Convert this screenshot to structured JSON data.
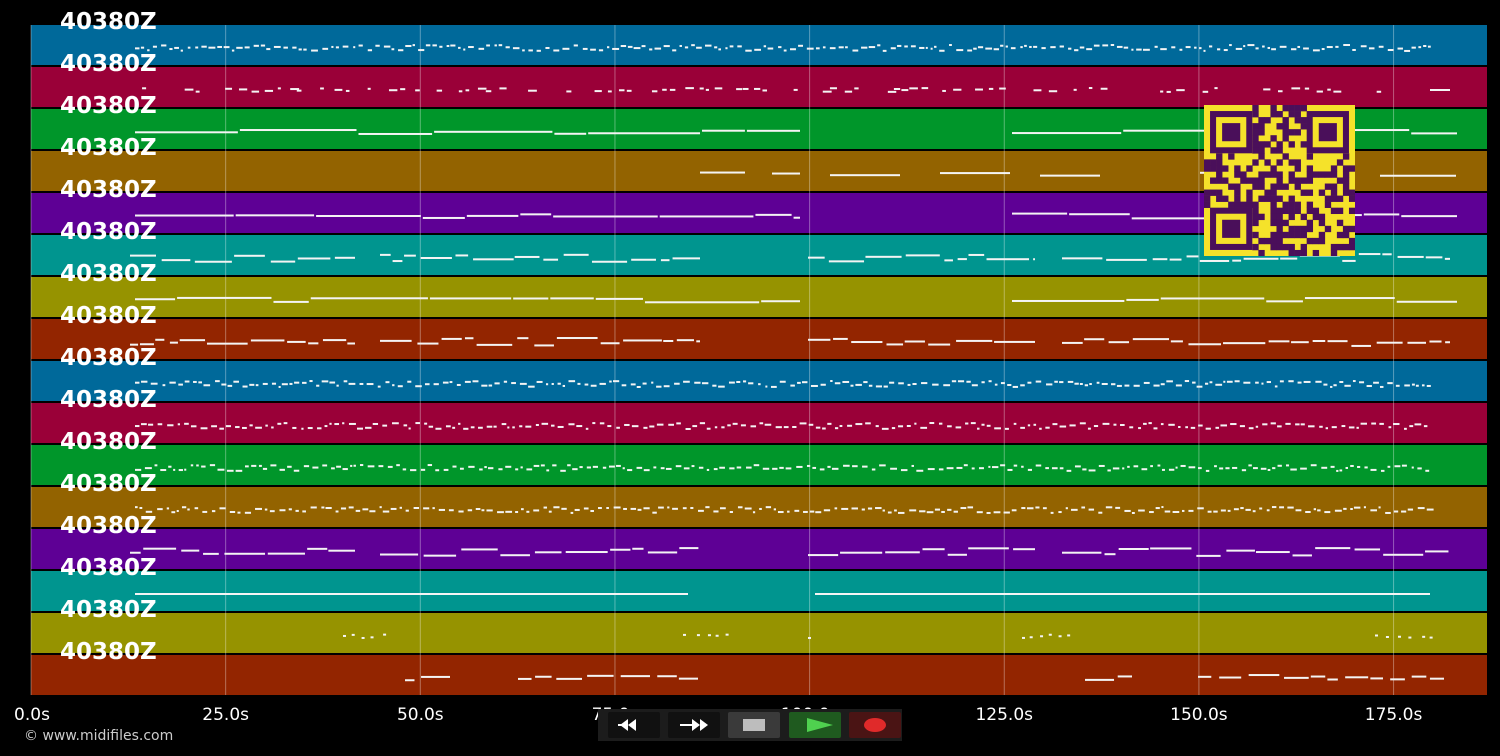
{
  "tracks": [
    {
      "label": "40380Z",
      "color": "#00699a",
      "pattern": "dots"
    },
    {
      "label": "40380Z",
      "color": "#9a0038",
      "pattern": "sparse"
    },
    {
      "label": "40380Z",
      "color": "#00962a",
      "pattern": "long"
    },
    {
      "label": "40380Z",
      "color": "#936300",
      "pattern": "gaps"
    },
    {
      "label": "40380Z",
      "color": "#5e0095",
      "pattern": "long"
    },
    {
      "label": "40380Z",
      "color": "#00958f",
      "pattern": "phrases"
    },
    {
      "label": "40380Z",
      "color": "#969300",
      "pattern": "long"
    },
    {
      "label": "40380Z",
      "color": "#932500",
      "pattern": "phrases"
    },
    {
      "label": "40380Z",
      "color": "#00699a",
      "pattern": "dense"
    },
    {
      "label": "40380Z",
      "color": "#9a0038",
      "pattern": "dots"
    },
    {
      "label": "40380Z",
      "color": "#00962a",
      "pattern": "dots"
    },
    {
      "label": "40380Z",
      "color": "#936300",
      "pattern": "dots"
    },
    {
      "label": "40380Z",
      "color": "#5e0095",
      "pattern": "phrases"
    },
    {
      "label": "40380Z",
      "color": "#00958f",
      "pattern": "split"
    },
    {
      "label": "40380Z",
      "color": "#969300",
      "pattern": "rare"
    },
    {
      "label": "40380Z",
      "color": "#932500",
      "pattern": "rare-lines"
    }
  ],
  "timeline": {
    "max_seconds": 187,
    "ticks": [
      "0.0s",
      "25.0s",
      "50.0s",
      "75.0s",
      "100.0s",
      "125.0s",
      "150.0s",
      "175.0s"
    ],
    "tick_values": [
      0,
      25,
      50,
      75,
      100,
      125,
      150,
      175
    ]
  },
  "transport": {
    "rewind_icon": "rewind-icon",
    "forward_icon": "fast-forward-icon",
    "stop_icon": "stop-icon",
    "play_icon": "play-icon",
    "record_icon": "record-icon"
  },
  "copyright": "© www.midifiles.com",
  "qr_icon": "qr-code-icon"
}
